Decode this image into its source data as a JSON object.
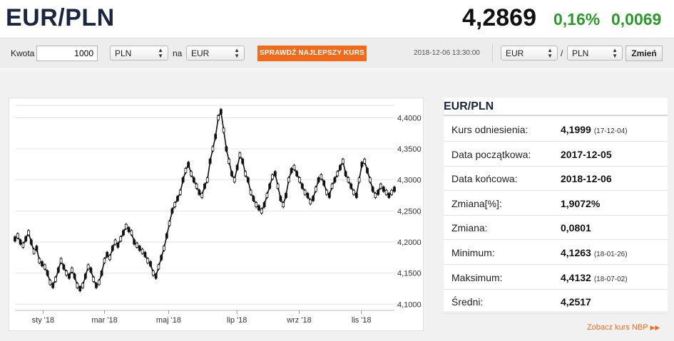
{
  "header": {
    "pair": "EUR/PLN",
    "rate": "4,2869",
    "change_pct": "0,16%",
    "change_abs": "0,0069",
    "change_color": "#2a9a2a"
  },
  "toolbar": {
    "amount_label": "Kwota",
    "amount_value": "1000",
    "from_currency": "PLN",
    "to_label": "na",
    "to_currency": "EUR",
    "check_button": "SPRAWDŹ NAJLEPSZY KURS",
    "datetime": "2018-12-06 13:30:00",
    "base_currency": "EUR",
    "slash": "/",
    "quote_currency": "PLN",
    "change_button": "Zmień",
    "accent_color": "#f26a1b"
  },
  "info": {
    "title": "EUR/PLN",
    "rows": [
      {
        "label": "Kurs odniesienia:",
        "value": "4,1999",
        "sub": "(17-12-04)"
      },
      {
        "label": "Data początkowa:",
        "value": "2017-12-05",
        "sub": ""
      },
      {
        "label": "Data końcowa:",
        "value": "2018-12-06",
        "sub": ""
      },
      {
        "label": "Zmiana[%]:",
        "value": "1,9072%",
        "sub": ""
      },
      {
        "label": "Zmiana:",
        "value": "0,0801",
        "sub": ""
      },
      {
        "label": "Minimum:",
        "value": "4,1263",
        "sub": "(18-01-26)"
      },
      {
        "label": "Maksimum:",
        "value": "4,4132",
        "sub": "(18-07-02)"
      },
      {
        "label": "Średni:",
        "value": "4,2517",
        "sub": ""
      }
    ],
    "nbp_link": "Zobacz kurs NBP"
  },
  "chart_data": {
    "type": "line",
    "ylim": [
      4.09,
      4.42
    ],
    "yticks": [
      "4,1000",
      "4,1500",
      "4,2000",
      "4,2500",
      "4,3000",
      "4,3500",
      "4,4000"
    ],
    "ytick_values": [
      4.1,
      4.15,
      4.2,
      4.25,
      4.3,
      4.35,
      4.4
    ],
    "xticks": [
      "sty '18",
      "mar '18",
      "maj '18",
      "lip '18",
      "wrz '18",
      "lis '18"
    ],
    "xtick_positions": [
      0.074,
      0.236,
      0.405,
      0.585,
      0.749,
      0.913
    ],
    "grid": true,
    "series": [
      {
        "values": [
          4.205,
          4.21,
          4.2,
          4.195,
          4.205,
          4.215,
          4.2,
          4.185,
          4.19,
          4.17,
          4.165,
          4.16,
          4.15,
          4.135,
          4.13,
          4.14,
          4.155,
          4.17,
          4.16,
          4.15,
          4.145,
          4.155,
          4.145,
          4.13,
          4.125,
          4.13,
          4.145,
          4.16,
          4.155,
          4.14,
          4.13,
          4.135,
          4.15,
          4.17,
          4.18,
          4.175,
          4.19,
          4.2,
          4.195,
          4.205,
          4.215,
          4.225,
          4.22,
          4.215,
          4.2,
          4.195,
          4.19,
          4.185,
          4.18,
          4.17,
          4.165,
          4.15,
          4.145,
          4.16,
          4.175,
          4.19,
          4.21,
          4.23,
          4.25,
          4.26,
          4.27,
          4.28,
          4.3,
          4.315,
          4.325,
          4.31,
          4.3,
          4.29,
          4.28,
          4.275,
          4.29,
          4.3,
          4.33,
          4.35,
          4.37,
          4.4,
          4.41,
          4.38,
          4.35,
          4.33,
          4.31,
          4.3,
          4.32,
          4.34,
          4.33,
          4.31,
          4.3,
          4.28,
          4.27,
          4.26,
          4.255,
          4.25,
          4.26,
          4.275,
          4.29,
          4.305,
          4.31,
          4.29,
          4.27,
          4.26,
          4.275,
          4.3,
          4.315,
          4.32,
          4.31,
          4.3,
          4.29,
          4.28,
          4.275,
          4.265,
          4.27,
          4.285,
          4.3,
          4.305,
          4.295,
          4.28,
          4.275,
          4.29,
          4.3,
          4.31,
          4.32,
          4.33,
          4.31,
          4.3,
          4.29,
          4.28,
          4.275,
          4.3,
          4.325,
          4.33,
          4.315,
          4.3,
          4.285,
          4.275,
          4.28,
          4.29,
          4.285,
          4.28,
          4.275,
          4.28,
          4.285
        ]
      }
    ]
  }
}
